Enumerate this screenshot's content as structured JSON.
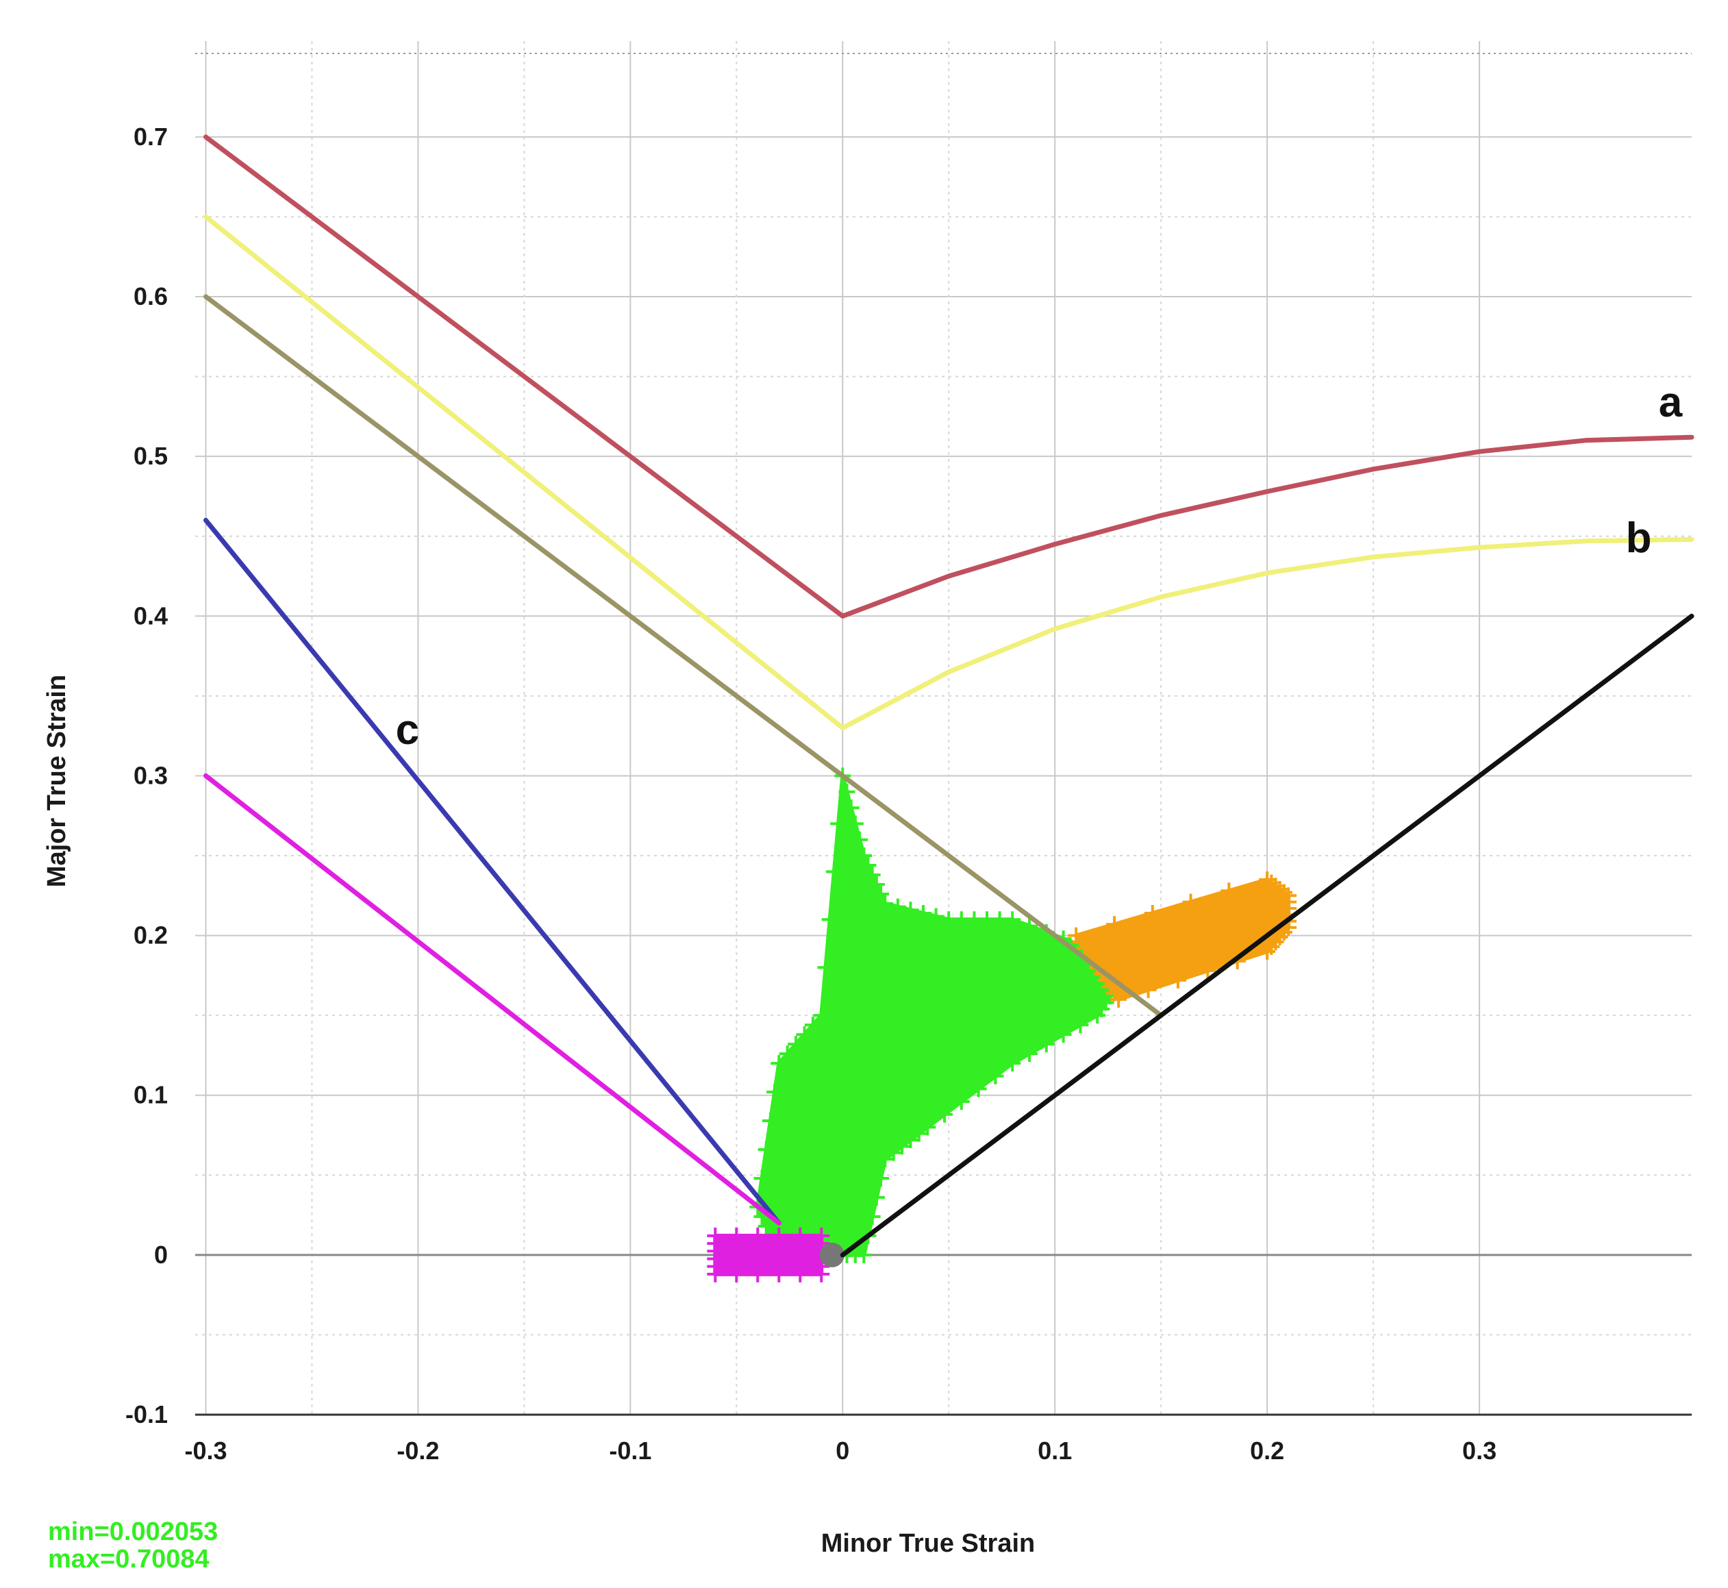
{
  "chart_data": {
    "type": "line",
    "xlabel": "Minor True Strain",
    "ylabel": "Major True Strain",
    "xlim": [
      -0.305,
      0.4
    ],
    "ylim": [
      -0.1,
      0.76
    ],
    "x_ticks": [
      -0.3,
      -0.2,
      -0.1,
      0,
      0.1,
      0.2,
      0.3
    ],
    "x_tick_labels": [
      "-0.3",
      "-0.2",
      "-0.1",
      "0",
      "0.1",
      "0.2",
      "0.3"
    ],
    "y_ticks": [
      0.7,
      0.6,
      0.5,
      0.4,
      0.3,
      0.2,
      0.1,
      0,
      -0.1
    ],
    "y_tick_labels": [
      "0.7",
      "0.6",
      "0.5",
      "0.4",
      "0.3",
      "0.2",
      "0.1",
      "0",
      "-0.1"
    ],
    "grid": true,
    "series": [
      {
        "name": "a",
        "color": "#c0505e",
        "x": [
          -0.3,
          0.0,
          0.05,
          0.1,
          0.15,
          0.2,
          0.25,
          0.3,
          0.35,
          0.4
        ],
        "y": [
          0.7,
          0.4,
          0.425,
          0.445,
          0.463,
          0.478,
          0.492,
          0.503,
          0.51,
          0.512
        ]
      },
      {
        "name": "b",
        "color": "#f0f07a",
        "x": [
          -0.3,
          0.0,
          0.05,
          0.1,
          0.15,
          0.2,
          0.25,
          0.3,
          0.35,
          0.4
        ],
        "y": [
          0.65,
          0.33,
          0.365,
          0.392,
          0.412,
          0.427,
          0.437,
          0.443,
          0.447,
          0.448
        ]
      },
      {
        "color": "#9a9466",
        "x": [
          -0.3,
          0.0,
          0.15
        ],
        "y": [
          0.6,
          0.3,
          0.15
        ]
      },
      {
        "name": "c",
        "color": "#3a3ab0",
        "x": [
          -0.3,
          -0.03
        ],
        "y": [
          0.46,
          0.02
        ]
      },
      {
        "color": "#e020e0",
        "x": [
          -0.3,
          -0.03
        ],
        "y": [
          0.3,
          0.02
        ]
      },
      {
        "color": "#111111",
        "x": [
          0.0,
          0.4
        ],
        "y": [
          0.0,
          0.4
        ]
      }
    ],
    "scatter_regions": [
      {
        "color": "#33ee22",
        "outline_x": [
          -0.04,
          -0.03,
          -0.01,
          0.0,
          0.01,
          0.02,
          0.05,
          0.08,
          0.12,
          0.13,
          0.12,
          0.08,
          0.04,
          0.02,
          0.01,
          -0.01,
          -0.03
        ],
        "outline_y": [
          0.03,
          0.12,
          0.15,
          0.3,
          0.25,
          0.22,
          0.21,
          0.21,
          0.19,
          0.17,
          0.15,
          0.12,
          0.08,
          0.06,
          0.0,
          0.0,
          0.0
        ]
      },
      {
        "color": "#f5a010",
        "outline_x": [
          0.11,
          0.2,
          0.21,
          0.21,
          0.2,
          0.13,
          0.12
        ],
        "outline_y": [
          0.2,
          0.235,
          0.225,
          0.205,
          0.19,
          0.16,
          0.18
        ]
      },
      {
        "color": "#e020e0",
        "outline_x": [
          -0.06,
          -0.01,
          -0.01,
          -0.06
        ],
        "outline_y": [
          0.012,
          0.012,
          -0.012,
          -0.012
        ]
      }
    ],
    "curve_labels": [
      {
        "text": "a",
        "x": 0.39,
        "y": 0.525
      },
      {
        "text": "b",
        "x": 0.375,
        "y": 0.44
      },
      {
        "text": "c",
        "x": -0.205,
        "y": 0.32
      }
    ]
  },
  "minmax": {
    "min_label": "min=0.002053",
    "max_label": "max=0.70084",
    "color": "#33ee22"
  }
}
